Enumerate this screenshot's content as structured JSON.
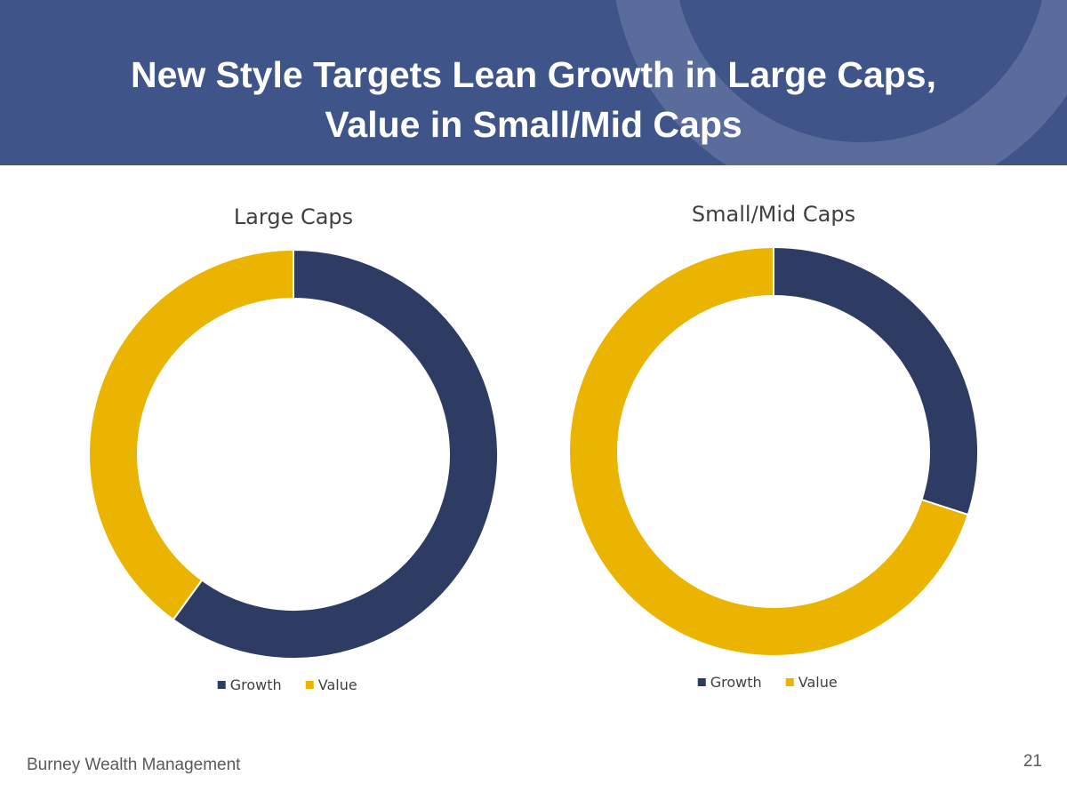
{
  "slide": {
    "title_line1": "New Style Targets Lean Growth in Large Caps,",
    "title_line2": "Value in Small/Mid Caps",
    "footer_company": "Burney Wealth Management",
    "page_number": "21"
  },
  "colors": {
    "header_bg": "#3f5488",
    "growth": "#2e3c63",
    "value": "#ebb400"
  },
  "chart_data": [
    {
      "type": "pie",
      "title": "Large Caps",
      "categories": [
        "Growth",
        "Value"
      ],
      "values": [
        60,
        40
      ],
      "legend_position": "bottom"
    },
    {
      "type": "pie",
      "title": "Small/Mid Caps",
      "categories": [
        "Growth",
        "Value"
      ],
      "values": [
        30,
        70
      ],
      "legend_position": "bottom"
    }
  ]
}
